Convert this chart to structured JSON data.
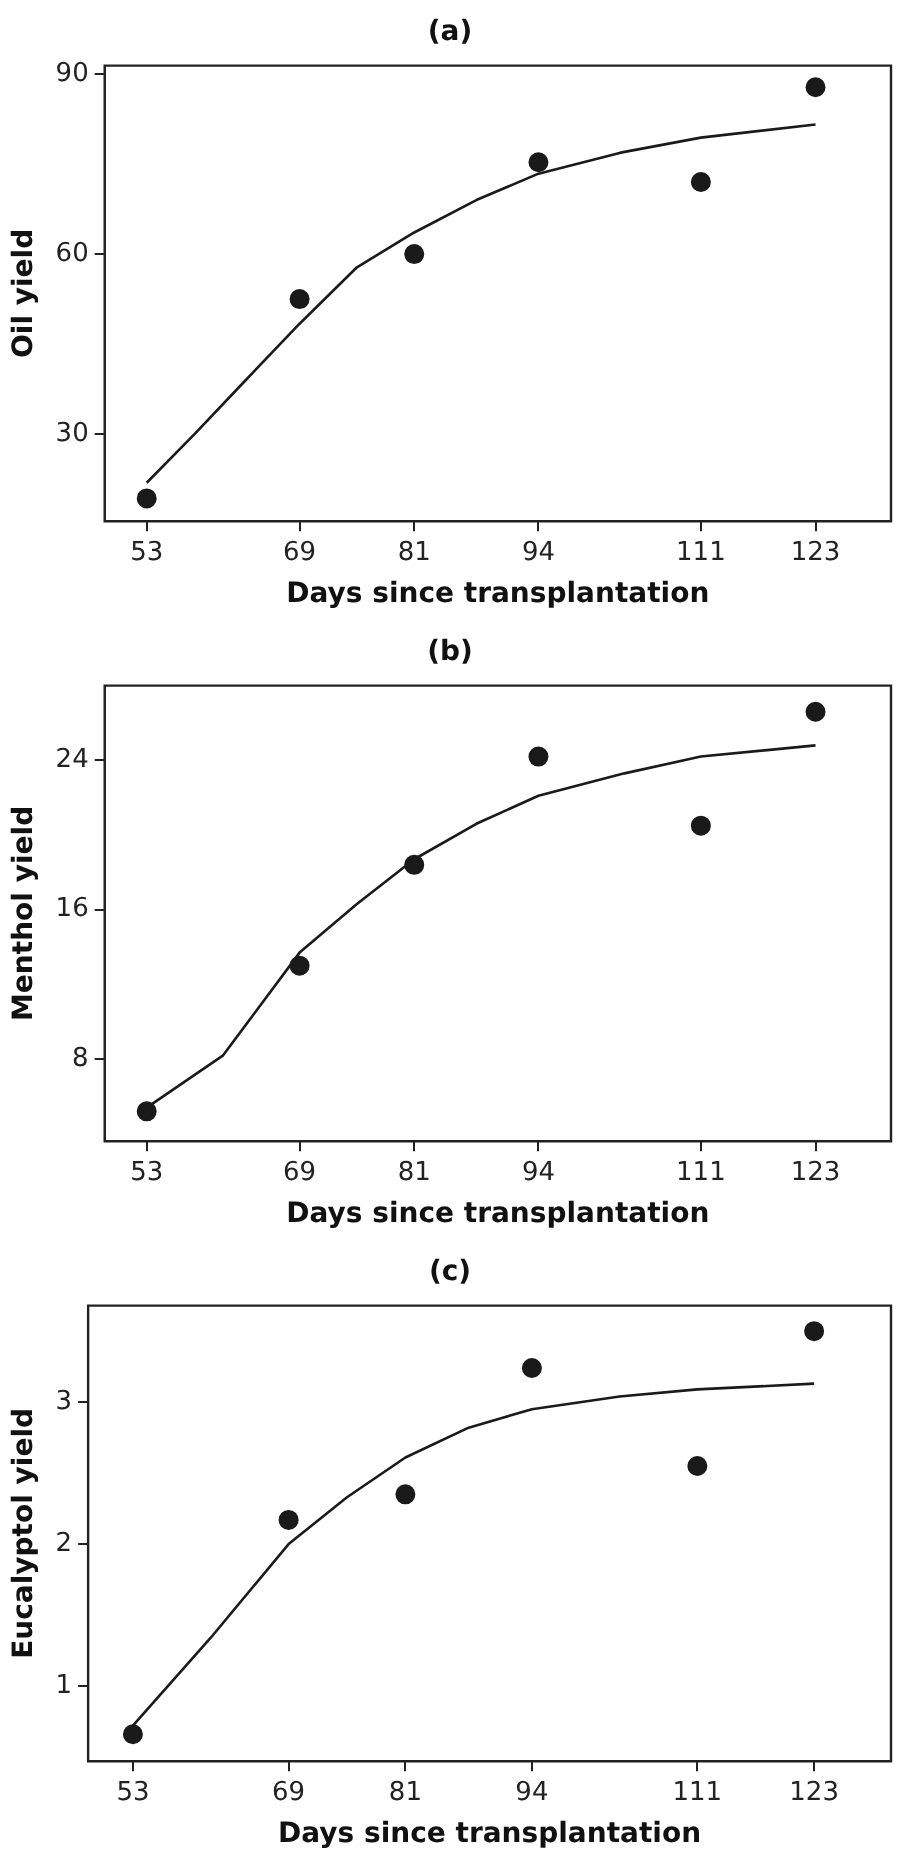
{
  "chart_data": [
    {
      "type": "scatter",
      "title": "(a)",
      "xlabel": "Days since transplantation",
      "ylabel": "Oil yield",
      "xlim": [
        48.6,
        130.9
      ],
      "xticks": [
        53,
        69,
        81,
        94,
        111,
        123
      ],
      "ylim": [
        15.5,
        91.4
      ],
      "yticks": [
        30,
        60,
        90
      ],
      "grid": false,
      "legend": false,
      "series": [
        {
          "marker": "circle",
          "color": "#1a1a1a",
          "x": [
            53,
            69,
            81,
            94,
            111,
            123
          ],
          "values": [
            19.3,
            52.5,
            60,
            75.3,
            72,
            87.8
          ]
        },
        {
          "type": "line",
          "marker": "none",
          "color": "#1a1a1a",
          "line_style": "solid",
          "x": [
            53,
            58,
            63,
            69,
            75,
            81,
            87.5,
            94,
            102.6,
            111,
            123
          ],
          "values": [
            21.9,
            30,
            38.4,
            48.4,
            57.8,
            63.6,
            69,
            73.4,
            76.9,
            79.4,
            81.6
          ]
        }
      ]
    },
    {
      "type": "scatter",
      "title": "(b)",
      "xlabel": "Days since transplantation",
      "ylabel": "Menthol yield",
      "xlim": [
        48.6,
        130.9
      ],
      "xticks": [
        53,
        69,
        81,
        94,
        111,
        123
      ],
      "ylim": [
        3.6,
        28
      ],
      "yticks": [
        8,
        16,
        24
      ],
      "grid": false,
      "legend": false,
      "series": [
        {
          "marker": "circle",
          "color": "#1a1a1a",
          "x": [
            53,
            69,
            81,
            94,
            111,
            123
          ],
          "values": [
            5.2,
            13,
            18.4,
            24.2,
            20.5,
            26.6
          ]
        },
        {
          "type": "line",
          "marker": "none",
          "color": "#1a1a1a",
          "line_style": "solid",
          "x": [
            53,
            61,
            69,
            75,
            81,
            87.5,
            94,
            103,
            111,
            123
          ],
          "values": [
            5.4,
            8.2,
            13.7,
            16.3,
            18.7,
            20.6,
            22.1,
            23.3,
            24.2,
            24.8
          ]
        }
      ]
    },
    {
      "type": "scatter",
      "title": "(c)",
      "xlabel": "Days since transplantation",
      "ylabel": "Eucalyptol yield",
      "xlim": [
        48.4,
        130.9
      ],
      "xticks": [
        53,
        69,
        81,
        94,
        111,
        123
      ],
      "ylim": [
        0.47,
        3.68
      ],
      "yticks": [
        1,
        2,
        3
      ],
      "grid": false,
      "legend": false,
      "series": [
        {
          "marker": "circle",
          "color": "#1a1a1a",
          "x": [
            53,
            69,
            81,
            94,
            111,
            123
          ],
          "values": [
            0.66,
            2.17,
            2.35,
            3.24,
            2.55,
            3.5
          ]
        },
        {
          "type": "line",
          "marker": "none",
          "color": "#1a1a1a",
          "line_style": "solid",
          "x": [
            53,
            61,
            69,
            75,
            81,
            87.5,
            94,
            103,
            111,
            123
          ],
          "values": [
            0.72,
            1.34,
            2,
            2.33,
            2.61,
            2.82,
            2.95,
            3.04,
            3.09,
            3.13
          ]
        }
      ]
    }
  ]
}
